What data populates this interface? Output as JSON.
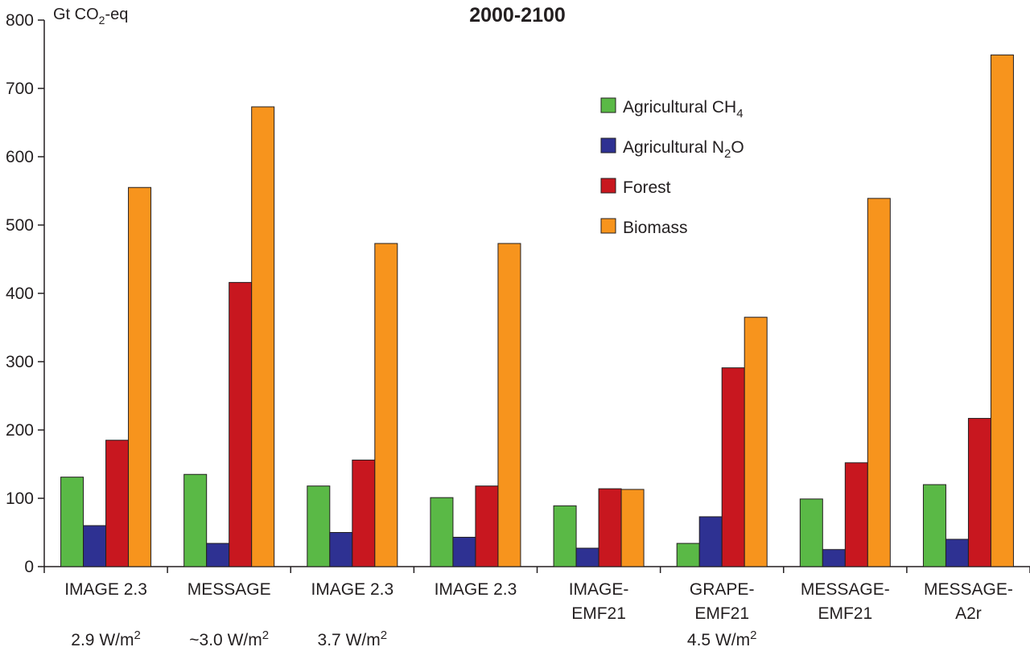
{
  "chart_data": {
    "type": "bar",
    "title": "2000-2100",
    "ylabel": "Gt CO2-eq",
    "ylabel_parts": {
      "pre": "Gt CO",
      "sub": "2",
      "post": "-eq"
    },
    "ylim": [
      0,
      800
    ],
    "yticks": [
      0,
      100,
      200,
      300,
      400,
      500,
      600,
      700,
      800
    ],
    "legend_position": "upper-right",
    "categories": [
      {
        "lines": [
          "IMAGE 2.3"
        ]
      },
      {
        "lines": [
          "MESSAGE"
        ]
      },
      {
        "lines": [
          "IMAGE 2.3"
        ]
      },
      {
        "lines": [
          "IMAGE 2.3"
        ]
      },
      {
        "lines": [
          "IMAGE-",
          "EMF21"
        ]
      },
      {
        "lines": [
          "GRAPE-",
          "EMF21"
        ]
      },
      {
        "lines": [
          "MESSAGE-",
          "EMF21"
        ]
      },
      {
        "lines": [
          "MESSAGE-",
          "A2r"
        ]
      }
    ],
    "forcing_labels": [
      {
        "category_index": 0,
        "pre": "2.9 W/m",
        "sup": "2"
      },
      {
        "category_index": 1,
        "pre": "~3.0 W/m",
        "sup": "2"
      },
      {
        "category_index": 2,
        "pre": "3.7 W/m",
        "sup": "2"
      },
      {
        "category_index": 5,
        "pre": "4.5 W/m",
        "sup": "2"
      }
    ],
    "series": [
      {
        "name": "Agricultural CH4",
        "name_parts": {
          "pre": "Agricultural CH",
          "sub": "4",
          "post": ""
        },
        "color": "#5ab946",
        "values": [
          131,
          135,
          118,
          101,
          89,
          34,
          99,
          120
        ]
      },
      {
        "name": "Agricultural N2O",
        "name_parts": {
          "pre": "Agricultural N",
          "sub": "2",
          "post": "O"
        },
        "color": "#2e3192",
        "values": [
          60,
          34,
          50,
          43,
          27,
          73,
          25,
          40
        ]
      },
      {
        "name": "Forest",
        "name_parts": {
          "pre": "Forest",
          "sub": "",
          "post": ""
        },
        "color": "#c8171f",
        "values": [
          185,
          416,
          156,
          118,
          114,
          291,
          152,
          217
        ]
      },
      {
        "name": "Biomass",
        "name_parts": {
          "pre": "Biomass",
          "sub": "",
          "post": ""
        },
        "color": "#f7941d",
        "values": [
          555,
          673,
          473,
          473,
          113,
          365,
          539,
          749
        ]
      }
    ]
  }
}
